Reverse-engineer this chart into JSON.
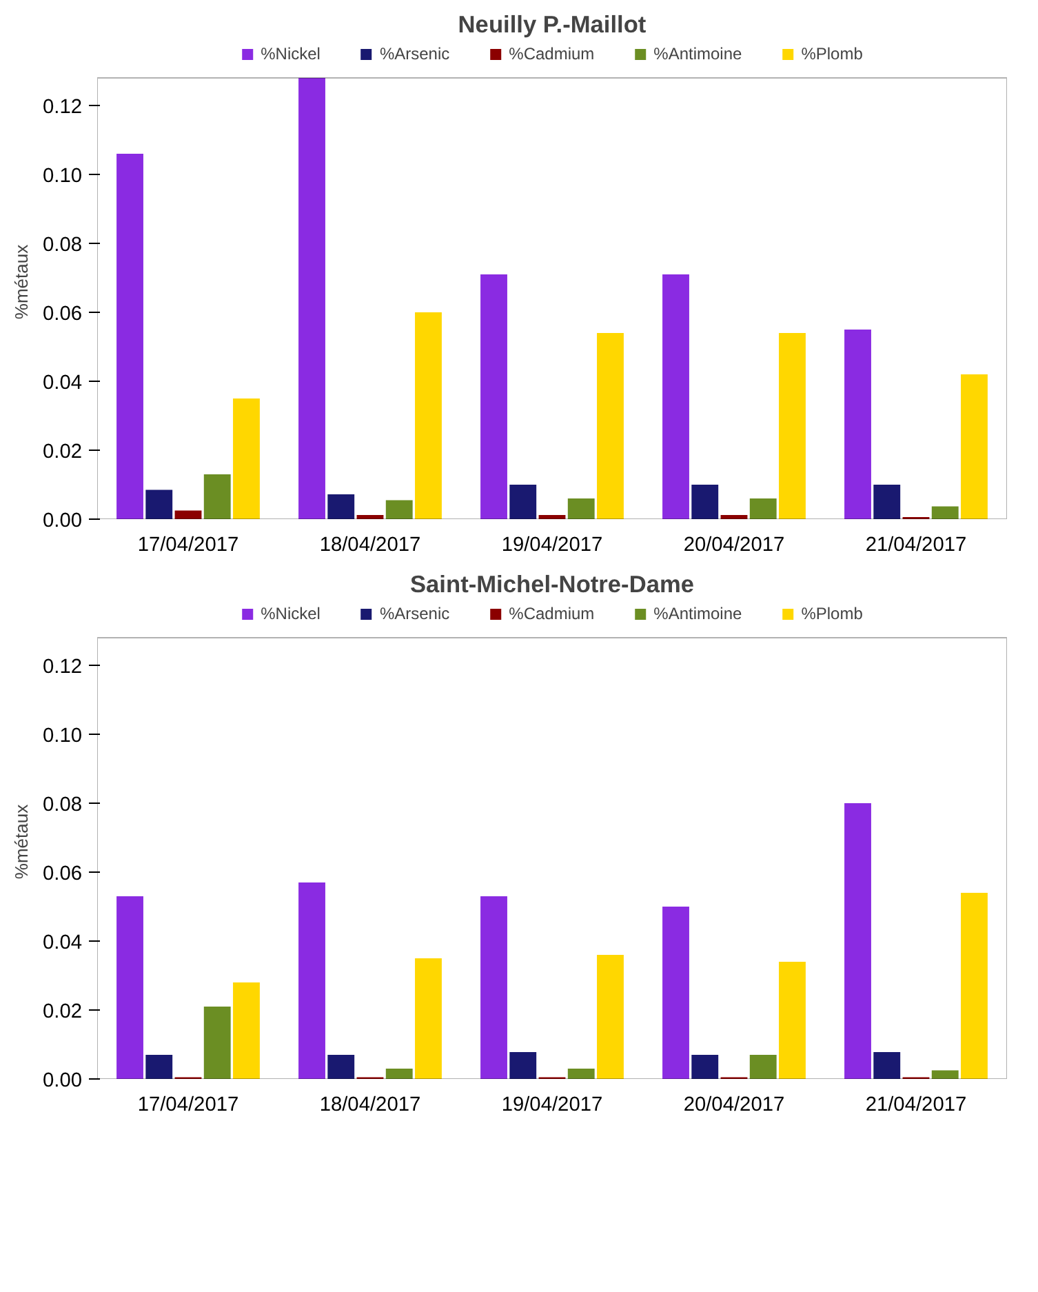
{
  "chart_data": [
    {
      "type": "bar",
      "title": "Neuilly P.-Maillot",
      "ylabel": "%métaux",
      "categories": [
        "17/04/2017",
        "18/04/2017",
        "19/04/2017",
        "20/04/2017",
        "21/04/2017"
      ],
      "series": [
        {
          "name": "%Nickel",
          "color": "#8a2be2",
          "values": [
            0.106,
            0.128,
            0.071,
            0.071,
            0.055
          ]
        },
        {
          "name": "%Arsenic",
          "color": "#191970",
          "values": [
            0.0085,
            0.0072,
            0.01,
            0.01,
            0.01
          ]
        },
        {
          "name": "%Cadmium",
          "color": "#8b0000",
          "values": [
            0.0025,
            0.0012,
            0.0012,
            0.0012,
            0.0006
          ]
        },
        {
          "name": "%Antimoine",
          "color": "#6b8e23",
          "values": [
            0.013,
            0.0055,
            0.006,
            0.006,
            0.0037
          ]
        },
        {
          "name": "%Plomb",
          "color": "#ffd700",
          "values": [
            0.035,
            0.06,
            0.054,
            0.054,
            0.042
          ]
        }
      ],
      "ylim": [
        0,
        0.128
      ],
      "yticks": [
        {
          "value": 0,
          "label": "0.00"
        },
        {
          "value": 0.02,
          "label": "0.02"
        },
        {
          "value": 0.04,
          "label": "0.04"
        },
        {
          "value": 0.06,
          "label": "0.06"
        },
        {
          "value": 0.08,
          "label": "0.08"
        },
        {
          "value": 0.1,
          "label": "0.10"
        },
        {
          "value": 0.12,
          "label": "0.12"
        }
      ],
      "grid": false,
      "legend": "top"
    },
    {
      "type": "bar",
      "title": "Saint-Michel-Notre-Dame",
      "ylabel": "%métaux",
      "categories": [
        "17/04/2017",
        "18/04/2017",
        "19/04/2017",
        "20/04/2017",
        "21/04/2017"
      ],
      "series": [
        {
          "name": "%Nickel",
          "color": "#8a2be2",
          "values": [
            0.053,
            0.057,
            0.053,
            0.05,
            0.08
          ]
        },
        {
          "name": "%Arsenic",
          "color": "#191970",
          "values": [
            0.007,
            0.007,
            0.0078,
            0.007,
            0.0078
          ]
        },
        {
          "name": "%Cadmium",
          "color": "#8b0000",
          "values": [
            0.0005,
            0.0005,
            0.0005,
            0.0005,
            0.0005
          ]
        },
        {
          "name": "%Antimoine",
          "color": "#6b8e23",
          "values": [
            0.021,
            0.003,
            0.003,
            0.007,
            0.0025
          ]
        },
        {
          "name": "%Plomb",
          "color": "#ffd700",
          "values": [
            0.028,
            0.035,
            0.036,
            0.034,
            0.054
          ]
        }
      ],
      "ylim": [
        0,
        0.128
      ],
      "yticks": [
        {
          "value": 0,
          "label": "0.00"
        },
        {
          "value": 0.02,
          "label": "0.02"
        },
        {
          "value": 0.04,
          "label": "0.04"
        },
        {
          "value": 0.06,
          "label": "0.06"
        },
        {
          "value": 0.08,
          "label": "0.08"
        },
        {
          "value": 0.1,
          "label": "0.10"
        },
        {
          "value": 0.12,
          "label": "0.12"
        }
      ],
      "grid": false,
      "legend": "top"
    }
  ]
}
